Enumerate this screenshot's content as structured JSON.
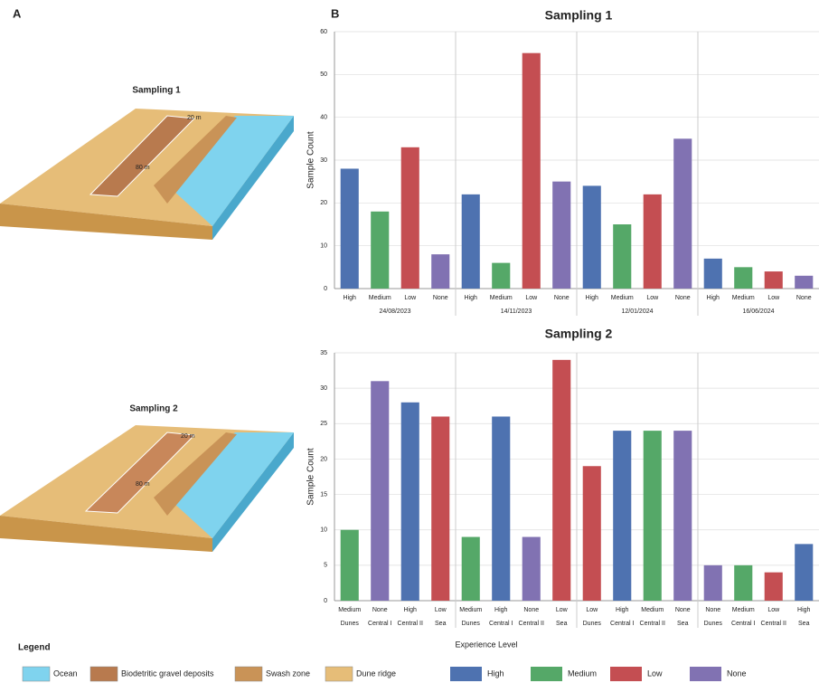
{
  "panel_labels": [
    "A",
    "B"
  ],
  "illustrations": [
    {
      "title": "Sampling 1",
      "width_label": "20 m",
      "length_label": "80 m"
    },
    {
      "title": "Sampling 2",
      "width_label": "20 m",
      "length_label": "80 m"
    }
  ],
  "map_legend": {
    "title": "Legend",
    "items": [
      {
        "label": "Ocean",
        "color": "#7fd3ee"
      },
      {
        "label": "Biodetritic gravel deposits",
        "color": "#b87a4e"
      },
      {
        "label": "Swash zone",
        "color": "#c99357"
      },
      {
        "label": "Dune ridge",
        "color": "#e6bd78"
      }
    ]
  },
  "level_legend": [
    {
      "label": "High",
      "color": "#4e72b0"
    },
    {
      "label": "Medium",
      "color": "#55a868"
    },
    {
      "label": "Low",
      "color": "#c44e52"
    },
    {
      "label": "None",
      "color": "#8172b2"
    }
  ],
  "chart_data": [
    {
      "type": "bar",
      "title": "Sampling 1",
      "ylabel": "Sample Count",
      "categories": [
        "High",
        "Medium",
        "Low",
        "None",
        "High",
        "Medium",
        "Low",
        "None",
        "High",
        "Medium",
        "Low",
        "None",
        "High",
        "Medium",
        "Low",
        "None"
      ],
      "groups": [
        "24/08/2023",
        "14/11/2023",
        "12/01/2024",
        "16/06/2024"
      ],
      "values": [
        28,
        18,
        33,
        8,
        22,
        6,
        55,
        25,
        24,
        15,
        22,
        35,
        7,
        5,
        4,
        3
      ],
      "colors": {
        "High": "#4e72b0",
        "Medium": "#55a868",
        "Low": "#c44e52",
        "None": "#8172b2"
      },
      "ylim": [
        0,
        60
      ],
      "yticks": [
        0,
        10,
        20,
        30,
        40,
        50,
        60
      ],
      "grid": true
    },
    {
      "type": "bar",
      "title": "Sampling 2",
      "ylabel": "Sample Count",
      "xlabel": "Experience Level",
      "categories": [
        "Medium",
        "None",
        "High",
        "Low",
        "Medium",
        "High",
        "None",
        "Low",
        "Low",
        "High",
        "Medium",
        "None",
        "None",
        "Medium",
        "Low",
        "High"
      ],
      "zones": [
        "Dunes",
        "Central I",
        "Central II",
        "Sea",
        "Dunes",
        "Central I",
        "Central II",
        "Sea",
        "Dunes",
        "Central I",
        "Central II",
        "Sea",
        "Dunes",
        "Central I",
        "Central II",
        "Sea"
      ],
      "values": [
        10,
        31,
        28,
        26,
        9,
        26,
        9,
        34,
        19,
        24,
        24,
        24,
        5,
        5,
        4,
        8
      ],
      "colors": {
        "High": "#4e72b0",
        "Medium": "#55a868",
        "Low": "#c44e52",
        "None": "#8172b2"
      },
      "ylim": [
        0,
        35
      ],
      "yticks": [
        0,
        5,
        10,
        15,
        20,
        25,
        30,
        35
      ],
      "grid": true
    }
  ]
}
